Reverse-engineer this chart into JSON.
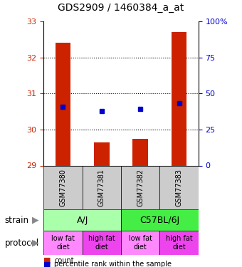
{
  "title": "GDS2909 / 1460384_a_at",
  "samples": [
    "GSM77380",
    "GSM77381",
    "GSM77382",
    "GSM77383"
  ],
  "bar_base": 29.0,
  "bar_tops": [
    32.4,
    29.65,
    29.75,
    32.7
  ],
  "blue_y": [
    30.62,
    30.52,
    30.58,
    30.72
  ],
  "ylim_left": [
    29.0,
    33.0
  ],
  "ylim_right": [
    0,
    100
  ],
  "yticks_left": [
    29,
    30,
    31,
    32,
    33
  ],
  "yticks_right": [
    0,
    25,
    50,
    75,
    100
  ],
  "bar_color": "#cc2200",
  "blue_color": "#0000cc",
  "strain_info": [
    {
      "start": 0,
      "end": 2,
      "label": "A/J",
      "color": "#aaffaa"
    },
    {
      "start": 2,
      "end": 4,
      "label": "C57BL/6J",
      "color": "#44ee44"
    }
  ],
  "protocol_labels": [
    "low fat\ndiet",
    "high fat\ndiet",
    "low fat\ndiet",
    "high fat\ndiet"
  ],
  "protocol_colors": [
    "#ff88ff",
    "#ee44ee",
    "#ff88ff",
    "#ee44ee"
  ],
  "legend_red_label": "count",
  "legend_blue_label": "percentile rank within the sample",
  "left_axis_color": "#cc2200",
  "right_axis_color": "#0000cc",
  "title_fontsize": 10,
  "tick_fontsize": 8,
  "sample_fontsize": 7,
  "strain_fontsize": 9,
  "proto_fontsize": 7,
  "legend_fontsize": 8
}
